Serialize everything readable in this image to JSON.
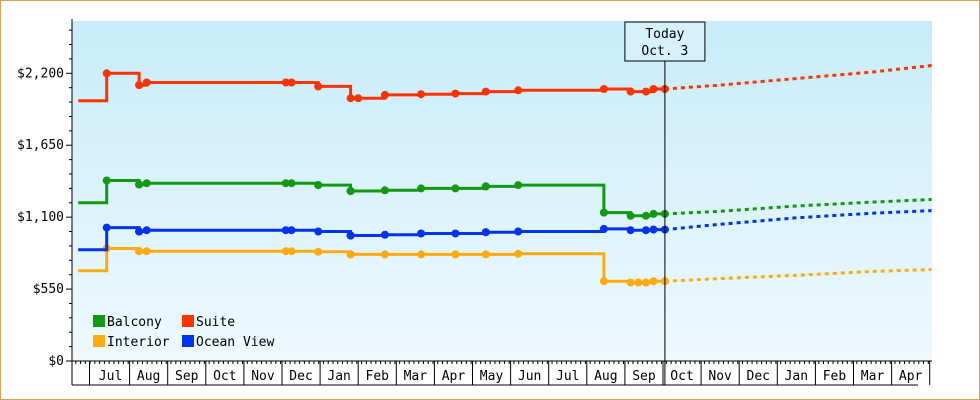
{
  "chart_data": {
    "type": "line",
    "ylim": [
      0,
      2600
    ],
    "yticks": [
      0,
      550,
      1100,
      1650,
      2200
    ],
    "ytick_labels": [
      "$0",
      "$550",
      "$1,100",
      "$1,650",
      "$2,200"
    ],
    "x_labels": [
      "Jul",
      "Aug",
      "Sep",
      "Oct",
      "Nov",
      "Dec",
      "Jan",
      "Feb",
      "Mar",
      "Apr",
      "May",
      "Jun",
      "Jul",
      "Aug",
      "Sep",
      "Oct",
      "Nov",
      "Dec",
      "Jan",
      "Feb",
      "Mar",
      "Apr"
    ],
    "x_range": [
      -0.85,
      21.55
    ],
    "today_x": 14.55,
    "today_label": [
      "Today",
      "Oct. 3"
    ],
    "legend_position": "bottom-left",
    "grid": false,
    "background_gradient": [
      "#c8ecfa",
      "#eef9fe"
    ],
    "series": [
      {
        "name": "Suite",
        "color": "#ff3300",
        "points": [
          [
            -0.85,
            1990
          ],
          [
            -0.1,
            1990
          ],
          [
            -0.1,
            2200
          ],
          [
            0.75,
            2200
          ],
          [
            0.75,
            2110
          ],
          [
            0.95,
            2110
          ],
          [
            0.95,
            2130
          ],
          [
            1.0,
            2130
          ],
          [
            4.6,
            2130
          ],
          [
            4.6,
            2130
          ],
          [
            4.75,
            2130
          ],
          [
            5.45,
            2130
          ],
          [
            5.45,
            2100
          ],
          [
            6.3,
            2100
          ],
          [
            6.3,
            2010
          ],
          [
            6.5,
            2010
          ],
          [
            7.2,
            2010
          ],
          [
            7.2,
            2035
          ],
          [
            8.15,
            2035
          ],
          [
            8.15,
            2040
          ],
          [
            9.05,
            2040
          ],
          [
            9.05,
            2045
          ],
          [
            9.85,
            2045
          ],
          [
            9.85,
            2060
          ],
          [
            10.7,
            2060
          ],
          [
            10.7,
            2070
          ],
          [
            12.95,
            2070
          ],
          [
            12.95,
            2080
          ],
          [
            13.65,
            2080
          ],
          [
            13.65,
            2060
          ],
          [
            14.05,
            2060
          ],
          [
            14.05,
            2060
          ],
          [
            14.25,
            2060
          ],
          [
            14.25,
            2080
          ],
          [
            14.55,
            2080
          ]
        ],
        "markers": [
          -0.1,
          0.75,
          0.75,
          0.95,
          4.6,
          4.75,
          5.45,
          5.45,
          6.3,
          6.5,
          7.2,
          8.15,
          9.05,
          9.85,
          10.7,
          12.95,
          13.65,
          14.05,
          14.25,
          14.55
        ],
        "forecast": [
          [
            14.55,
            2080
          ],
          [
            16,
            2110
          ],
          [
            18,
            2160
          ],
          [
            20,
            2210
          ],
          [
            21.55,
            2260
          ]
        ]
      },
      {
        "name": "Balcony",
        "color": "#119911",
        "points": [
          [
            -0.85,
            1210
          ],
          [
            -0.1,
            1210
          ],
          [
            -0.1,
            1380
          ],
          [
            0.75,
            1380
          ],
          [
            0.75,
            1350
          ],
          [
            0.95,
            1350
          ],
          [
            0.95,
            1360
          ],
          [
            4.6,
            1360
          ],
          [
            4.75,
            1360
          ],
          [
            5.45,
            1360
          ],
          [
            5.45,
            1345
          ],
          [
            6.3,
            1345
          ],
          [
            6.3,
            1300
          ],
          [
            7.2,
            1300
          ],
          [
            7.2,
            1305
          ],
          [
            8.15,
            1305
          ],
          [
            8.15,
            1320
          ],
          [
            9.05,
            1320
          ],
          [
            9.05,
            1320
          ],
          [
            9.85,
            1320
          ],
          [
            9.85,
            1335
          ],
          [
            10.7,
            1335
          ],
          [
            10.7,
            1345
          ],
          [
            12.95,
            1345
          ],
          [
            12.95,
            1135
          ],
          [
            13.65,
            1135
          ],
          [
            13.65,
            1110
          ],
          [
            14.05,
            1110
          ],
          [
            14.05,
            1110
          ],
          [
            14.25,
            1110
          ],
          [
            14.25,
            1125
          ],
          [
            14.55,
            1125
          ]
        ],
        "markers": [
          -0.1,
          0.75,
          0.75,
          0.95,
          4.6,
          4.75,
          5.45,
          5.45,
          6.3,
          6.3,
          7.2,
          8.15,
          9.05,
          9.85,
          9.85,
          10.7,
          12.95,
          12.95,
          13.65,
          14.05,
          14.25,
          14.55
        ],
        "forecast": [
          [
            14.55,
            1125
          ],
          [
            16,
            1145
          ],
          [
            18,
            1185
          ],
          [
            20,
            1215
          ],
          [
            21.55,
            1235
          ]
        ]
      },
      {
        "name": "Ocean View",
        "color": "#0033ee",
        "points": [
          [
            -0.85,
            850
          ],
          [
            -0.1,
            850
          ],
          [
            -0.1,
            1020
          ],
          [
            0.75,
            1020
          ],
          [
            0.75,
            990
          ],
          [
            0.95,
            990
          ],
          [
            0.95,
            1000
          ],
          [
            4.6,
            1000
          ],
          [
            4.75,
            1000
          ],
          [
            5.45,
            1000
          ],
          [
            5.45,
            990
          ],
          [
            6.3,
            990
          ],
          [
            6.3,
            960
          ],
          [
            7.2,
            960
          ],
          [
            7.2,
            965
          ],
          [
            8.15,
            965
          ],
          [
            8.15,
            975
          ],
          [
            9.05,
            975
          ],
          [
            9.05,
            975
          ],
          [
            9.85,
            975
          ],
          [
            9.85,
            985
          ],
          [
            10.7,
            985
          ],
          [
            10.7,
            990
          ],
          [
            12.95,
            990
          ],
          [
            12.95,
            1010
          ],
          [
            13.65,
            1010
          ],
          [
            13.65,
            1000
          ],
          [
            14.05,
            1000
          ],
          [
            14.05,
            1000
          ],
          [
            14.25,
            1000
          ],
          [
            14.25,
            1005
          ],
          [
            14.55,
            1005
          ]
        ],
        "markers": [
          -0.1,
          0.75,
          0.75,
          0.95,
          4.6,
          4.75,
          5.45,
          6.3,
          6.3,
          7.2,
          8.15,
          9.05,
          9.85,
          9.85,
          10.7,
          12.95,
          13.65,
          14.05,
          14.25,
          14.55
        ],
        "forecast": [
          [
            14.55,
            1005
          ],
          [
            16,
            1045
          ],
          [
            18,
            1095
          ],
          [
            20,
            1130
          ],
          [
            21.55,
            1150
          ]
        ]
      },
      {
        "name": "Interior",
        "color": "#ffaa11",
        "points": [
          [
            -0.85,
            690
          ],
          [
            -0.1,
            690
          ],
          [
            -0.1,
            860
          ],
          [
            0.75,
            860
          ],
          [
            0.75,
            840
          ],
          [
            0.95,
            840
          ],
          [
            0.95,
            840
          ],
          [
            4.6,
            840
          ],
          [
            4.75,
            840
          ],
          [
            5.45,
            840
          ],
          [
            5.45,
            835
          ],
          [
            6.3,
            835
          ],
          [
            6.3,
            815
          ],
          [
            7.2,
            815
          ],
          [
            7.2,
            815
          ],
          [
            8.15,
            815
          ],
          [
            8.15,
            815
          ],
          [
            9.05,
            815
          ],
          [
            9.05,
            815
          ],
          [
            9.85,
            815
          ],
          [
            9.85,
            815
          ],
          [
            10.7,
            815
          ],
          [
            10.7,
            820
          ],
          [
            12.95,
            820
          ],
          [
            12.95,
            610
          ],
          [
            13.65,
            610
          ],
          [
            13.65,
            600
          ],
          [
            14.05,
            600
          ],
          [
            14.05,
            600
          ],
          [
            14.25,
            600
          ],
          [
            14.25,
            610
          ],
          [
            14.55,
            610
          ]
        ],
        "markers": [
          -0.1,
          0.75,
          0.75,
          0.95,
          4.6,
          4.75,
          5.45,
          6.3,
          6.3,
          7.2,
          8.15,
          9.05,
          9.85,
          10.7,
          12.95,
          13.65,
          13.85,
          14.05,
          14.25,
          14.55
        ],
        "forecast": [
          [
            14.55,
            610
          ],
          [
            16,
            630
          ],
          [
            18,
            655
          ],
          [
            20,
            685
          ],
          [
            21.55,
            700
          ]
        ]
      }
    ]
  }
}
